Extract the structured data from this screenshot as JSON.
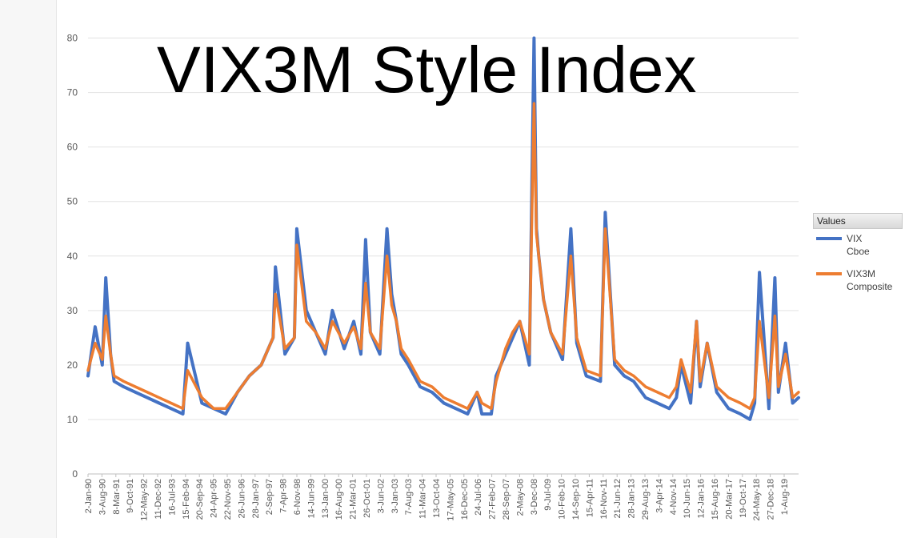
{
  "title": "VIX3M Style Index",
  "legend": {
    "header": "Values",
    "items": [
      {
        "line1": "VIX",
        "line2": "Cboe",
        "color": "#4472c4"
      },
      {
        "line1": "VIX3M",
        "line2": "Composite",
        "color": "#ed7d31"
      }
    ]
  },
  "chart_data": {
    "type": "line",
    "title": "VIX3M Style Index",
    "ylim": [
      0,
      80
    ],
    "yticks": [
      0,
      10,
      20,
      30,
      40,
      50,
      60,
      70,
      80
    ],
    "grid": true,
    "legend_position": "right",
    "xtick_labels": [
      "2-Jan-90",
      "3-Aug-90",
      "8-Mar-91",
      "9-Oct-91",
      "12-May-92",
      "11-Dec-92",
      "16-Jul-93",
      "15-Feb-94",
      "20-Sep-94",
      "24-Apr-95",
      "22-Nov-95",
      "26-Jun-96",
      "28-Jan-97",
      "2-Sep-97",
      "7-Apr-98",
      "6-Nov-98",
      "14-Jun-99",
      "13-Jan-00",
      "16-Aug-00",
      "21-Mar-01",
      "26-Oct-01",
      "3-Jun-02",
      "3-Jan-03",
      "7-Aug-03",
      "11-Mar-04",
      "13-Oct-04",
      "17-May-05",
      "16-Dec-05",
      "24-Jul-06",
      "27-Feb-07",
      "28-Sep-07",
      "2-May-08",
      "3-Dec-08",
      "9-Jul-09",
      "10-Feb-10",
      "14-Sep-10",
      "15-Apr-11",
      "16-Nov-11",
      "21-Jun-12",
      "28-Jan-13",
      "29-Aug-13",
      "3-Apr-14",
      "4-Nov-14",
      "10-Jun-15",
      "12-Jan-16",
      "15-Aug-16",
      "20-Mar-17",
      "19-Oct-17",
      "24-May-18",
      "27-Dec-18",
      "1-Aug-19"
    ],
    "series": [
      {
        "name": "VIX Cboe",
        "color": "#4472c4",
        "x": [
          1990.0,
          1990.3,
          1990.6,
          1990.75,
          1990.95,
          1991.1,
          1991.5,
          1992.0,
          1992.5,
          1993.0,
          1993.5,
          1994.0,
          1994.2,
          1994.8,
          1995.3,
          1995.8,
          1996.3,
          1996.8,
          1997.3,
          1997.8,
          1997.9,
          1998.3,
          1998.7,
          1998.8,
          1999.2,
          1999.6,
          2000.0,
          2000.3,
          2000.8,
          2001.2,
          2001.5,
          2001.7,
          2001.9,
          2002.3,
          2002.6,
          2002.8,
          2003.0,
          2003.2,
          2003.5,
          2004.0,
          2004.5,
          2005.0,
          2005.5,
          2006.0,
          2006.4,
          2006.6,
          2007.0,
          2007.2,
          2007.6,
          2007.9,
          2008.2,
          2008.6,
          2008.8,
          2008.9,
          2009.0,
          2009.2,
          2009.5,
          2010.0,
          2010.35,
          2010.6,
          2011.0,
          2011.6,
          2011.8,
          2012.2,
          2012.6,
          2013.0,
          2013.5,
          2014.0,
          2014.5,
          2014.8,
          2015.0,
          2015.4,
          2015.65,
          2015.8,
          2016.1,
          2016.5,
          2017.0,
          2017.5,
          2017.9,
          2018.1,
          2018.3,
          2018.7,
          2018.95,
          2019.1,
          2019.4,
          2019.7,
          2019.95
        ],
        "y": [
          18,
          27,
          20,
          36,
          22,
          17,
          16,
          15,
          14,
          13,
          12,
          11,
          24,
          13,
          12,
          11,
          15,
          18,
          20,
          25,
          38,
          22,
          25,
          45,
          30,
          26,
          22,
          30,
          23,
          28,
          22,
          43,
          26,
          22,
          45,
          33,
          28,
          22,
          20,
          16,
          15,
          13,
          12,
          11,
          15,
          11,
          11,
          18,
          22,
          25,
          28,
          20,
          80,
          45,
          40,
          32,
          26,
          21,
          45,
          24,
          18,
          17,
          48,
          20,
          18,
          17,
          14,
          13,
          12,
          14,
          20,
          13,
          28,
          16,
          24,
          15,
          12,
          11,
          10,
          13,
          37,
          12,
          36,
          15,
          24,
          13,
          14
        ]
      },
      {
        "name": "VIX3M Composite",
        "color": "#ed7d31",
        "x": [
          1990.0,
          1990.3,
          1990.6,
          1990.75,
          1990.95,
          1991.1,
          1991.5,
          1992.0,
          1992.5,
          1993.0,
          1993.5,
          1994.0,
          1994.2,
          1994.8,
          1995.3,
          1995.8,
          1996.3,
          1996.8,
          1997.3,
          1997.8,
          1997.9,
          1998.3,
          1998.7,
          1998.8,
          1999.2,
          1999.6,
          2000.0,
          2000.3,
          2000.8,
          2001.2,
          2001.5,
          2001.7,
          2001.9,
          2002.3,
          2002.6,
          2002.8,
          2003.0,
          2003.2,
          2003.5,
          2004.0,
          2004.5,
          2005.0,
          2005.5,
          2006.0,
          2006.4,
          2006.6,
          2007.0,
          2007.2,
          2007.6,
          2007.9,
          2008.2,
          2008.6,
          2008.8,
          2008.9,
          2009.0,
          2009.2,
          2009.5,
          2010.0,
          2010.35,
          2010.6,
          2011.0,
          2011.6,
          2011.8,
          2012.2,
          2012.6,
          2013.0,
          2013.5,
          2014.0,
          2014.5,
          2014.8,
          2015.0,
          2015.4,
          2015.65,
          2015.8,
          2016.1,
          2016.5,
          2017.0,
          2017.5,
          2017.9,
          2018.1,
          2018.3,
          2018.7,
          2018.95,
          2019.1,
          2019.4,
          2019.7,
          2019.95
        ],
        "y": [
          19,
          24,
          21,
          29,
          22,
          18,
          17,
          16,
          15,
          14,
          13,
          12,
          19,
          14,
          12,
          12,
          15,
          18,
          20,
          25,
          33,
          23,
          25,
          42,
          28,
          26,
          23,
          28,
          24,
          27,
          23,
          35,
          26,
          23,
          40,
          31,
          28,
          23,
          21,
          17,
          16,
          14,
          13,
          12,
          15,
          13,
          12,
          17,
          23,
          26,
          28,
          22,
          68,
          44,
          40,
          32,
          26,
          22,
          40,
          25,
          19,
          18,
          45,
          21,
          19,
          18,
          16,
          15,
          14,
          16,
          21,
          15,
          28,
          17,
          24,
          16,
          14,
          13,
          12,
          14,
          28,
          14,
          29,
          16,
          22,
          14,
          15
        ]
      }
    ]
  }
}
